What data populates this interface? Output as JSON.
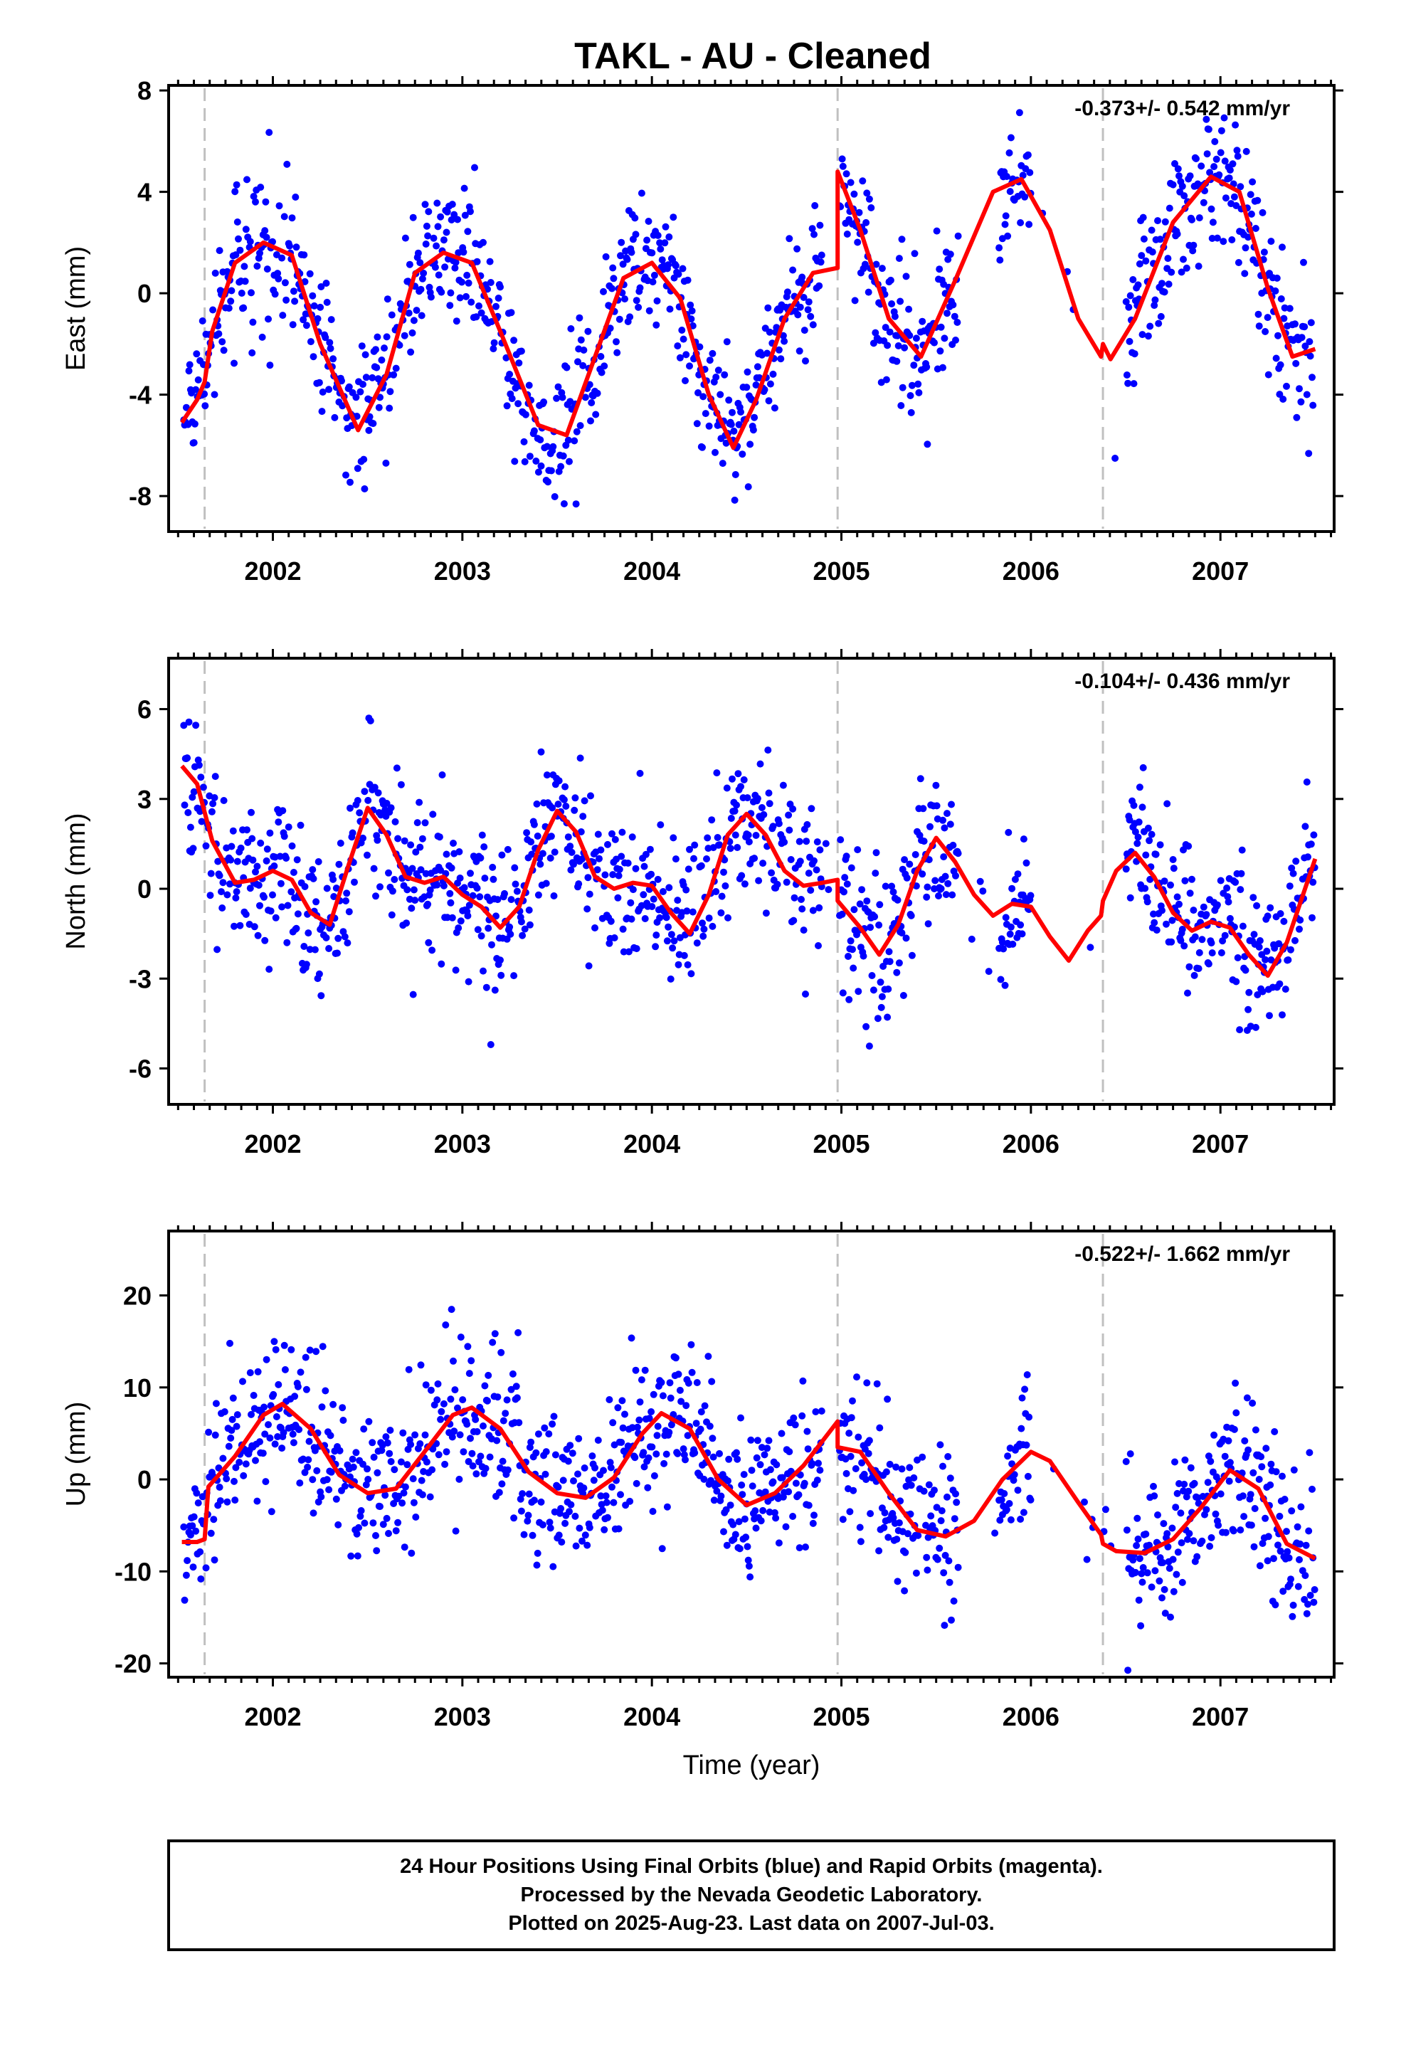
{
  "title": "TAKL  - AU - Cleaned",
  "footer": {
    "line1": "24 Hour Positions Using Final Orbits (blue) and Rapid Orbits (magenta).",
    "line2": "Processed by the Nevada Geodetic Laboratory.",
    "line3": "Plotted on 2025-Aug-23. Last data on 2007-Jul-03."
  },
  "colors": {
    "points": "#0000ff",
    "model": "#ff0000",
    "breaks": "#c0c0c0"
  },
  "chart_data": [
    {
      "type": "scatter",
      "ylabel": "East (mm)",
      "xlabel": "",
      "rate": "-0.373+/- 0.542 mm/yr",
      "xlim": [
        2001.45,
        2007.6
      ],
      "ylim": [
        -9.4,
        8.2
      ],
      "yticks": [
        -8,
        -4,
        0,
        4,
        8
      ],
      "xticks": [
        2002,
        2003,
        2004,
        2005,
        2006,
        2007
      ],
      "breaks": [
        2001.64,
        2004.98,
        2006.38
      ],
      "model": {
        "x": [
          2001.52,
          2001.6,
          2001.64,
          2001.68,
          2001.8,
          2001.95,
          2002.1,
          2002.25,
          2002.45,
          2002.6,
          2002.75,
          2002.9,
          2003.05,
          2003.2,
          2003.4,
          2003.55,
          2003.7,
          2003.85,
          2004.0,
          2004.15,
          2004.3,
          2004.43,
          2004.55,
          2004.7,
          2004.85,
          2004.98,
          2004.98,
          2005.1,
          2005.25,
          2005.42,
          2005.6,
          2005.8,
          2005.95,
          2006.1,
          2006.25,
          2006.37,
          2006.38,
          2006.42,
          2006.55,
          2006.75,
          2006.95,
          2007.1,
          2007.25,
          2007.38,
          2007.5
        ],
        "y": [
          -5.1,
          -4.2,
          -3.5,
          -1.5,
          1.2,
          2.0,
          1.5,
          -2.0,
          -5.4,
          -3.2,
          0.8,
          1.6,
          1.2,
          -1.5,
          -5.2,
          -5.6,
          -2.5,
          0.6,
          1.2,
          -0.2,
          -4.0,
          -6.1,
          -4.2,
          -1.0,
          0.8,
          1.0,
          4.8,
          2.5,
          -1.0,
          -2.5,
          0.5,
          4.0,
          4.5,
          2.5,
          -1.0,
          -2.5,
          -2.0,
          -2.6,
          -1.0,
          2.8,
          4.6,
          4.0,
          0.2,
          -2.5,
          -2.2
        ]
      },
      "points_note": "dense daily positions"
    },
    {
      "type": "scatter",
      "ylabel": "North (mm)",
      "xlabel": "",
      "rate": "-0.104+/- 0.436 mm/yr",
      "xlim": [
        2001.45,
        2007.6
      ],
      "ylim": [
        -7.2,
        7.7
      ],
      "yticks": [
        -6,
        -3,
        0,
        3,
        6
      ],
      "xticks": [
        2002,
        2003,
        2004,
        2005,
        2006,
        2007
      ],
      "breaks": [
        2001.64,
        2004.98,
        2006.38
      ],
      "model": {
        "x": [
          2001.52,
          2001.6,
          2001.68,
          2001.8,
          2001.9,
          2002.0,
          2002.1,
          2002.2,
          2002.3,
          2002.4,
          2002.5,
          2002.6,
          2002.7,
          2002.8,
          2002.9,
          2003.0,
          2003.1,
          2003.2,
          2003.3,
          2003.4,
          2003.5,
          2003.6,
          2003.7,
          2003.8,
          2003.9,
          2004.0,
          2004.1,
          2004.2,
          2004.3,
          2004.4,
          2004.5,
          2004.6,
          2004.7,
          2004.8,
          2004.9,
          2004.98,
          2004.98,
          2005.1,
          2005.2,
          2005.3,
          2005.4,
          2005.5,
          2005.6,
          2005.7,
          2005.8,
          2005.9,
          2006.0,
          2006.1,
          2006.2,
          2006.3,
          2006.37,
          2006.38,
          2006.45,
          2006.55,
          2006.65,
          2006.75,
          2006.85,
          2006.95,
          2007.05,
          2007.15,
          2007.25,
          2007.35,
          2007.5
        ],
        "y": [
          4.1,
          3.5,
          1.6,
          0.2,
          0.3,
          0.6,
          0.3,
          -0.8,
          -1.2,
          0.8,
          2.7,
          1.8,
          0.4,
          0.2,
          0.4,
          -0.2,
          -0.6,
          -1.3,
          -0.6,
          1.3,
          2.6,
          1.9,
          0.4,
          0.0,
          0.2,
          0.1,
          -0.8,
          -1.5,
          -0.2,
          1.8,
          2.5,
          1.8,
          0.6,
          0.1,
          0.2,
          0.3,
          -0.4,
          -1.3,
          -2.2,
          -1.2,
          0.6,
          1.7,
          0.9,
          -0.2,
          -0.9,
          -0.5,
          -0.6,
          -1.6,
          -2.4,
          -1.4,
          -0.9,
          -0.4,
          0.6,
          1.2,
          0.4,
          -0.8,
          -1.4,
          -1.1,
          -1.3,
          -2.2,
          -2.9,
          -1.8,
          1.0
        ]
      },
      "points_note": "dense daily positions"
    },
    {
      "type": "scatter",
      "ylabel": "Up (mm)",
      "xlabel": "Time (year)",
      "rate": "-0.522+/- 1.662 mm/yr",
      "xlim": [
        2001.45,
        2007.6
      ],
      "ylim": [
        -21.5,
        27
      ],
      "yticks": [
        -20,
        -10,
        0,
        10,
        20
      ],
      "xticks": [
        2002,
        2003,
        2004,
        2005,
        2006,
        2007
      ],
      "breaks": [
        2001.64,
        2004.98,
        2006.38
      ],
      "model": {
        "x": [
          2001.52,
          2001.6,
          2001.64,
          2001.66,
          2001.8,
          2001.95,
          2002.05,
          2002.2,
          2002.35,
          2002.5,
          2002.65,
          2002.8,
          2002.95,
          2003.05,
          2003.2,
          2003.35,
          2003.5,
          2003.65,
          2003.8,
          2003.95,
          2004.05,
          2004.2,
          2004.35,
          2004.5,
          2004.65,
          2004.8,
          2004.98,
          2004.98,
          2005.1,
          2005.25,
          2005.4,
          2005.55,
          2005.7,
          2005.85,
          2006.0,
          2006.1,
          2006.25,
          2006.37,
          2006.38,
          2006.45,
          2006.6,
          2006.75,
          2006.9,
          2007.05,
          2007.2,
          2007.35,
          2007.5
        ],
        "y": [
          -6.8,
          -6.8,
          -6.5,
          -0.8,
          2.5,
          7.0,
          8.2,
          5.5,
          0.5,
          -1.5,
          -1.0,
          3.0,
          7.0,
          7.8,
          5.5,
          0.8,
          -1.5,
          -2.0,
          0.2,
          5.0,
          7.2,
          5.5,
          0.0,
          -2.8,
          -1.5,
          1.5,
          6.3,
          3.5,
          3.0,
          -1.5,
          -5.5,
          -6.2,
          -4.5,
          0.0,
          3.0,
          2.0,
          -2.5,
          -6.0,
          -7.0,
          -7.8,
          -8.0,
          -6.5,
          -3.0,
          1.0,
          -1.0,
          -7.0,
          -8.6
        ]
      },
      "points_note": "dense daily positions"
    }
  ]
}
